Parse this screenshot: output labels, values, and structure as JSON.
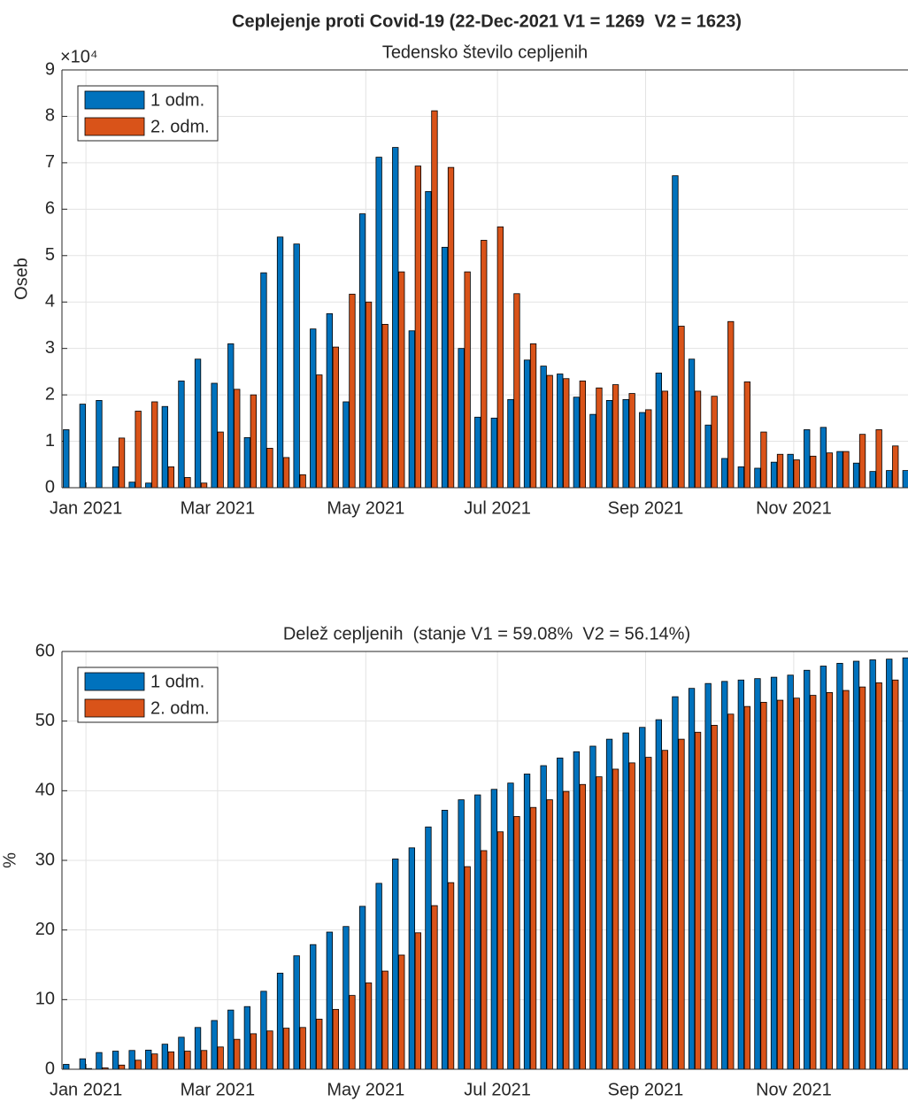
{
  "chart_data": [
    {
      "type": "bar",
      "title": "Ceplejenje proti Covid-19 (22-Dec-2021 V1 = 1269  V2 = 1623)",
      "subtitle": "Tedensko število cepljenih",
      "ylabel": "Oseb",
      "y_exponent_label": "×10⁴",
      "categories": [
        null,
        "Jan 2021",
        null,
        null,
        null,
        null,
        null,
        null,
        null,
        "Mar 2021",
        null,
        null,
        null,
        null,
        null,
        null,
        null,
        null,
        "May 2021",
        null,
        null,
        null,
        null,
        null,
        null,
        null,
        "Jul 2021",
        null,
        null,
        null,
        null,
        null,
        null,
        null,
        null,
        "Sep 2021",
        null,
        null,
        null,
        null,
        null,
        null,
        null,
        null,
        "Nov 2021",
        null,
        null,
        null,
        null,
        null,
        null,
        null
      ],
      "series": [
        {
          "name": "1 odm.",
          "color": "#0072BD",
          "values": [
            1.25,
            1.8,
            1.88,
            0.45,
            0.12,
            0.1,
            1.75,
            2.3,
            2.77,
            2.25,
            3.1,
            1.08,
            4.63,
            5.4,
            5.25,
            3.42,
            3.75,
            1.85,
            5.9,
            7.12,
            7.33,
            3.38,
            6.38,
            5.18,
            3.0,
            1.52,
            1.5,
            1.9,
            2.75,
            2.62,
            2.45,
            1.95,
            1.58,
            1.88,
            1.9,
            1.62,
            2.47,
            6.72,
            2.77,
            1.35,
            0.63,
            0.45,
            0.42,
            0.55,
            0.72,
            1.25,
            1.3,
            0.78,
            0.53,
            0.35,
            0.37,
            0.37
          ]
        },
        {
          "name": "2. odm.",
          "color": "#D95319",
          "values": [
            0,
            0,
            0,
            1.07,
            1.65,
            1.85,
            0.45,
            0.22,
            0.1,
            1.2,
            2.12,
            2.0,
            0.85,
            0.65,
            0.28,
            2.43,
            3.03,
            4.17,
            4.0,
            3.52,
            4.65,
            6.93,
            8.12,
            6.9,
            4.65,
            5.33,
            5.62,
            4.18,
            3.1,
            2.42,
            2.35,
            2.3,
            2.15,
            2.22,
            2.03,
            1.68,
            2.08,
            3.48,
            2.08,
            1.97,
            3.58,
            2.28,
            1.2,
            0.72,
            0.6,
            0.68,
            0.75,
            0.78,
            1.15,
            1.25,
            0.9,
            null
          ]
        }
      ],
      "ylim": [
        0,
        9
      ],
      "yticks": [
        0,
        1,
        2,
        3,
        4,
        5,
        6,
        7,
        8,
        9
      ],
      "grid": true,
      "legend": "upper-left"
    },
    {
      "type": "bar",
      "title": "Delež cepljenih  (stanje V1 = 59.08%  V2 = 56.14%)",
      "ylabel": "%",
      "categories": [
        null,
        "Jan 2021",
        null,
        null,
        null,
        null,
        null,
        null,
        null,
        "Mar 2021",
        null,
        null,
        null,
        null,
        null,
        null,
        null,
        null,
        "May 2021",
        null,
        null,
        null,
        null,
        null,
        null,
        null,
        "Jul 2021",
        null,
        null,
        null,
        null,
        null,
        null,
        null,
        null,
        "Sep 2021",
        null,
        null,
        null,
        null,
        null,
        null,
        null,
        null,
        "Nov 2021",
        null,
        null,
        null,
        null,
        null,
        null,
        null
      ],
      "series": [
        {
          "name": "1 odm.",
          "color": "#0072BD",
          "values": [
            0.7,
            1.5,
            2.4,
            2.6,
            2.7,
            2.75,
            3.6,
            4.6,
            6.0,
            7.0,
            8.5,
            9.0,
            11.2,
            13.8,
            16.3,
            17.9,
            19.7,
            20.5,
            23.4,
            26.7,
            30.2,
            31.8,
            34.8,
            37.2,
            38.7,
            39.4,
            40.2,
            41.1,
            42.4,
            43.6,
            44.7,
            45.6,
            46.4,
            47.4,
            48.3,
            49.1,
            50.2,
            53.5,
            54.7,
            55.4,
            55.7,
            55.9,
            56.1,
            56.3,
            56.6,
            57.3,
            57.9,
            58.3,
            58.6,
            58.8,
            58.9,
            59.08
          ]
        },
        {
          "name": "2. odm.",
          "color": "#D95319",
          "values": [
            0,
            0.1,
            0.2,
            0.6,
            1.3,
            2.2,
            2.5,
            2.6,
            2.7,
            3.2,
            4.3,
            5.1,
            5.5,
            5.9,
            6.0,
            7.2,
            8.6,
            10.6,
            12.4,
            14.1,
            16.4,
            19.6,
            23.5,
            26.8,
            29.1,
            31.4,
            34.1,
            36.3,
            37.6,
            38.7,
            39.9,
            40.9,
            42.0,
            43.1,
            44.0,
            44.8,
            45.8,
            47.4,
            48.4,
            49.4,
            51.0,
            52.1,
            52.7,
            53.0,
            53.3,
            53.7,
            54.1,
            54.4,
            54.9,
            55.5,
            55.9,
            null
          ]
        }
      ],
      "ylim": [
        0,
        60
      ],
      "yticks": [
        0,
        10,
        20,
        30,
        40,
        50,
        60
      ],
      "grid": true,
      "legend": "upper-left"
    }
  ]
}
